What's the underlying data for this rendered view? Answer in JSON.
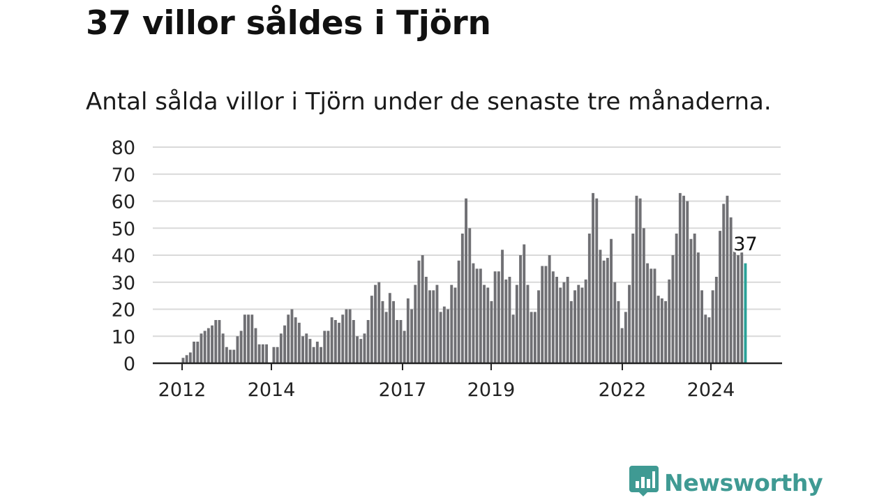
{
  "title": "37 villor såldes i Tjörn",
  "subtitle": "Antal sålda villor i Tjörn under de senaste tre månaderna.",
  "brand": {
    "name": "Newsworthy",
    "color": "#3f9a93",
    "icon": "newsworthy-chart-icon"
  },
  "colors": {
    "bar": "#707074",
    "highlight": "#2aa198",
    "grid": "#d9d9d9",
    "axis": "#222222"
  },
  "chart_data": {
    "type": "bar",
    "title": "37 villor såldes i Tjörn",
    "subtitle": "Antal sålda villor i Tjörn under de senaste tre månaderna.",
    "xlabel": "",
    "ylabel": "",
    "ylim": [
      0,
      80
    ],
    "yticks": [
      0,
      10,
      20,
      30,
      40,
      50,
      60,
      70,
      80
    ],
    "xticks": [
      "2012",
      "2014",
      "2017",
      "2019",
      "2022",
      "2024"
    ],
    "grid": true,
    "values": [
      2,
      3,
      4,
      8,
      8,
      11,
      12,
      13,
      14,
      16,
      16,
      11,
      6,
      5,
      5,
      10,
      12,
      18,
      18,
      18,
      13,
      7,
      7,
      7,
      0,
      6,
      6,
      11,
      14,
      18,
      20,
      17,
      15,
      10,
      11,
      9,
      6,
      8,
      6,
      12,
      12,
      17,
      16,
      15,
      18,
      20,
      20,
      16,
      10,
      9,
      11,
      16,
      25,
      29,
      30,
      23,
      19,
      26,
      23,
      16,
      16,
      12,
      24,
      20,
      29,
      38,
      40,
      32,
      27,
      27,
      29,
      19,
      21,
      20,
      29,
      28,
      38,
      48,
      61,
      50,
      37,
      35,
      35,
      29,
      28,
      23,
      34,
      34,
      42,
      31,
      32,
      18,
      29,
      40,
      44,
      29,
      19,
      19,
      27,
      36,
      36,
      40,
      34,
      32,
      28,
      30,
      32,
      23,
      27,
      29,
      28,
      31,
      48,
      63,
      61,
      42,
      38,
      39,
      46,
      30,
      23,
      13,
      19,
      29,
      48,
      62,
      61,
      50,
      37,
      35,
      35,
      25,
      24,
      23,
      31,
      40,
      48,
      63,
      62,
      60,
      46,
      48,
      41,
      27,
      18,
      17,
      27,
      32,
      49,
      59,
      62,
      54,
      43,
      40,
      41,
      37
    ],
    "highlight_label": "37"
  }
}
